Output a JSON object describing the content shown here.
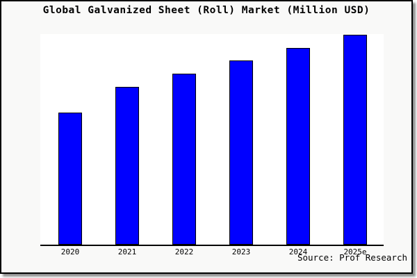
{
  "chart_data": {
    "type": "bar",
    "title": "Global Galvanized Sheet (Roll) Market (Million USD)",
    "categories": [
      "2020",
      "2021",
      "2022",
      "2023",
      "2024",
      "2025e"
    ],
    "values": [
      62.9,
      75.3,
      81.5,
      87.7,
      93.6,
      100
    ],
    "value_scale_note": "no y-axis ticks shown; values are relative bar heights with 2025e = 100",
    "ylim": [
      0,
      100
    ],
    "xlabel": "",
    "ylabel": "",
    "grid": false,
    "legend": false,
    "bar_color": "#0000ff",
    "bar_border_color": "#000000",
    "plot_background": "#ffffff",
    "frame_background": "#f9f9f8",
    "axis_color": "#000000",
    "source": "Source: Prof Research"
  }
}
